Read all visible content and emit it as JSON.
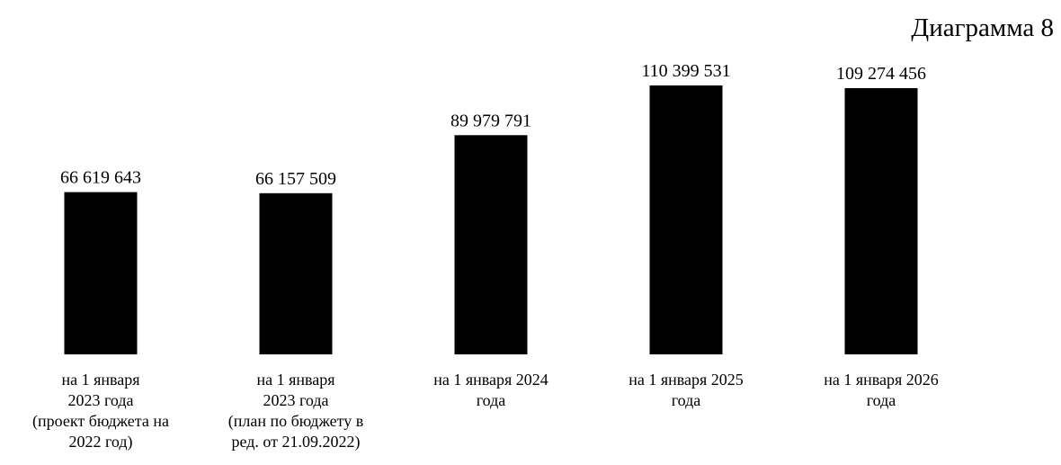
{
  "chart_data": {
    "type": "bar",
    "title": "Диаграмма 8",
    "xlabel": "",
    "ylabel": "",
    "ylim": [
      0,
      110399531
    ],
    "grid": false,
    "legend": "none",
    "bar_color": "#000000",
    "categories": [
      [
        "на 1 января",
        "2023 года",
        "(проект бюджета на",
        "2022 год)"
      ],
      [
        "на 1 января",
        "2023 года",
        "(план по бюджету в",
        "ред. от 21.09.2022)"
      ],
      [
        "на 1 января 2024",
        "года"
      ],
      [
        "на 1 января 2025",
        "года"
      ],
      [
        "на 1 января 2026",
        "года"
      ]
    ],
    "values": [
      66619643,
      66157509,
      89979791,
      110399531,
      109274456
    ],
    "value_labels": [
      "66 619 643",
      "66 157 509",
      "89 979 791",
      "110 399 531",
      "109 274 456"
    ]
  }
}
